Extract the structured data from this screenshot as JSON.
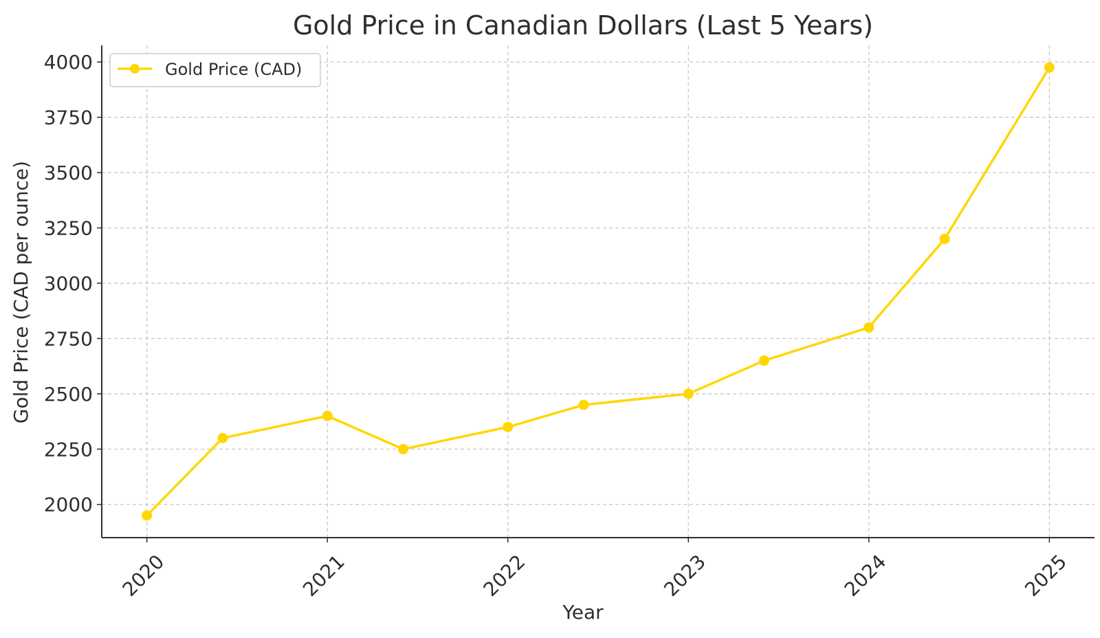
{
  "chart_data": {
    "type": "line",
    "title": "Gold Price in Canadian Dollars (Last 5 Years)",
    "xlabel": "Year",
    "ylabel": "Gold Price (CAD per ounce)",
    "x_ticks": [
      "2020",
      "2021",
      "2022",
      "2023",
      "2024",
      "2025"
    ],
    "y_ticks": [
      "2000",
      "2250",
      "2500",
      "2750",
      "3000",
      "3250",
      "3500",
      "3750",
      "4000"
    ],
    "xlim": [
      2019.75,
      2025.25
    ],
    "ylim": [
      1850,
      4075
    ],
    "grid": true,
    "legend_position": "top-left",
    "series": [
      {
        "name": "Gold Price (CAD)",
        "color": "#FFD700",
        "marker": "circle",
        "x": [
          2020.0,
          2020.42,
          2021.0,
          2021.42,
          2022.0,
          2022.42,
          2023.0,
          2023.42,
          2024.0,
          2024.42,
          2025.0
        ],
        "y": [
          1950,
          2300,
          2400,
          2250,
          2350,
          2450,
          2500,
          2650,
          2800,
          3200,
          3975
        ]
      }
    ]
  }
}
